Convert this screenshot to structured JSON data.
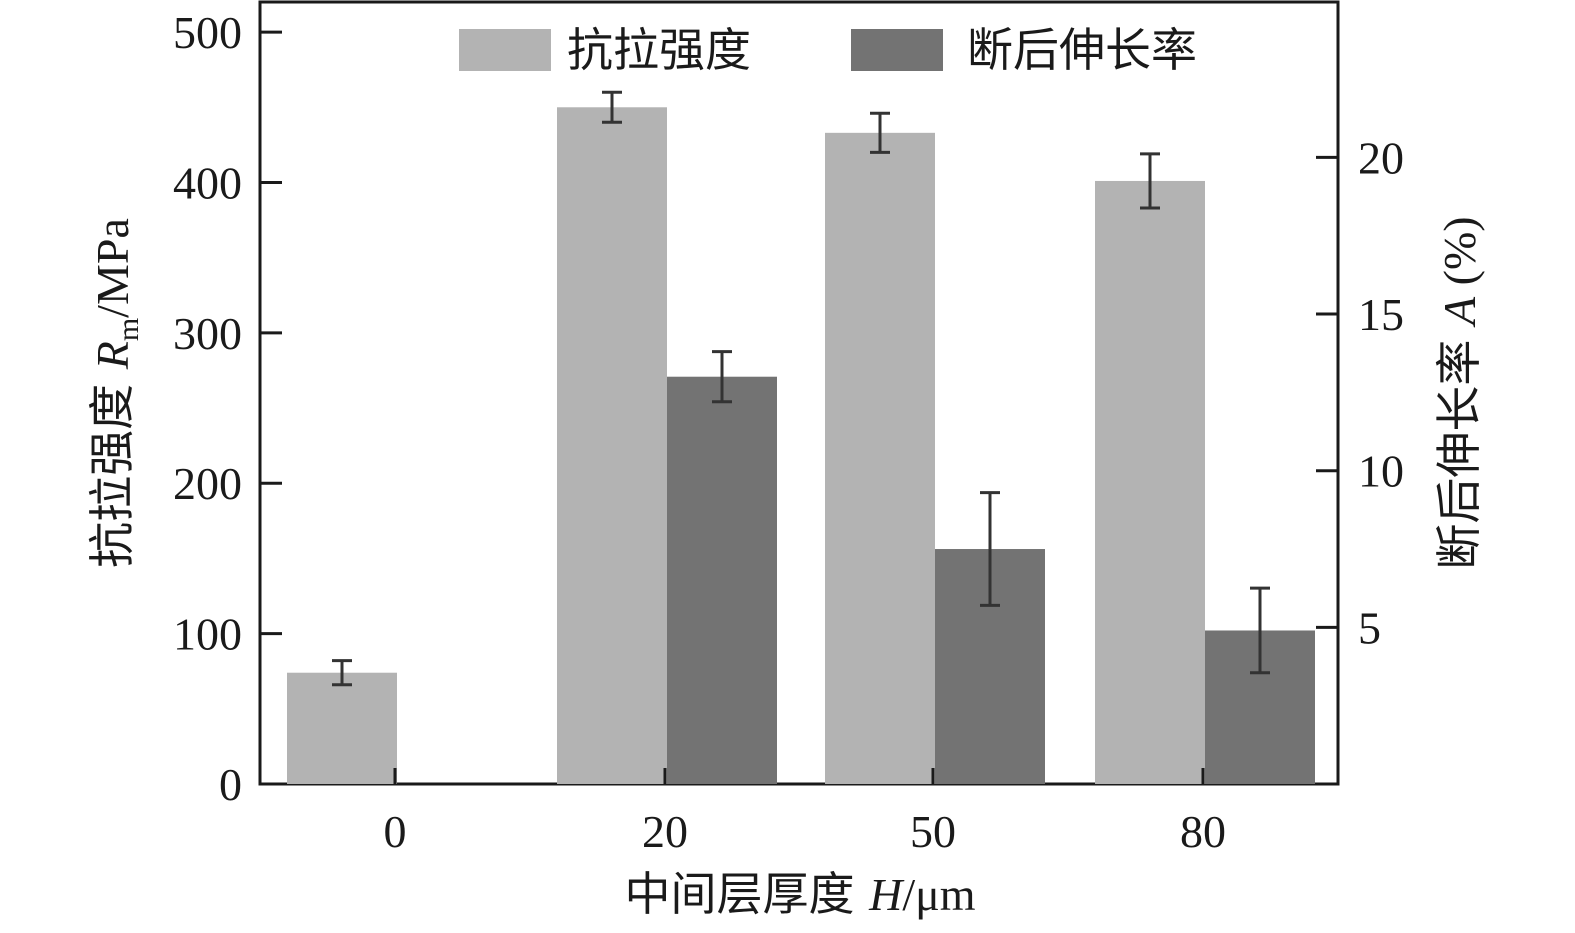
{
  "chart_data": {
    "type": "bar",
    "categories": [
      "0",
      "20",
      "50",
      "80"
    ],
    "series": [
      {
        "name": "抗拉强度",
        "axis": "left",
        "color": "#b3b3b3",
        "values": [
          74,
          450,
          433,
          401
        ],
        "errors": [
          8,
          10,
          13,
          18
        ]
      },
      {
        "name": "断后伸长率",
        "axis": "right",
        "color": "#737373",
        "values": [
          0,
          13.0,
          7.5,
          4.9
        ],
        "errors": [
          0,
          0.8,
          1.8,
          1.35
        ]
      }
    ],
    "xlabel": {
      "main": "中间层厚度 ",
      "var": "H",
      "unit": "/μm"
    },
    "ylabel_left": {
      "main": "抗拉强度 ",
      "var": "R",
      "sub": "m",
      "unit": "/MPa"
    },
    "ylabel_right": {
      "main": "断后伸长率 ",
      "var": "A",
      "unit": " (%)"
    },
    "ylim_left": [
      0,
      520
    ],
    "ylim_right": [
      0,
      24.96
    ],
    "yticks_left": [
      "0",
      "100",
      "200",
      "300",
      "400",
      "500"
    ],
    "yticks_right": [
      "5",
      "10",
      "15",
      "20"
    ],
    "yticks_left_values": [
      0,
      100,
      200,
      300,
      400,
      500
    ],
    "yticks_right_values": [
      5,
      10,
      15,
      20
    ],
    "legend_position": "top",
    "grid": false
  }
}
